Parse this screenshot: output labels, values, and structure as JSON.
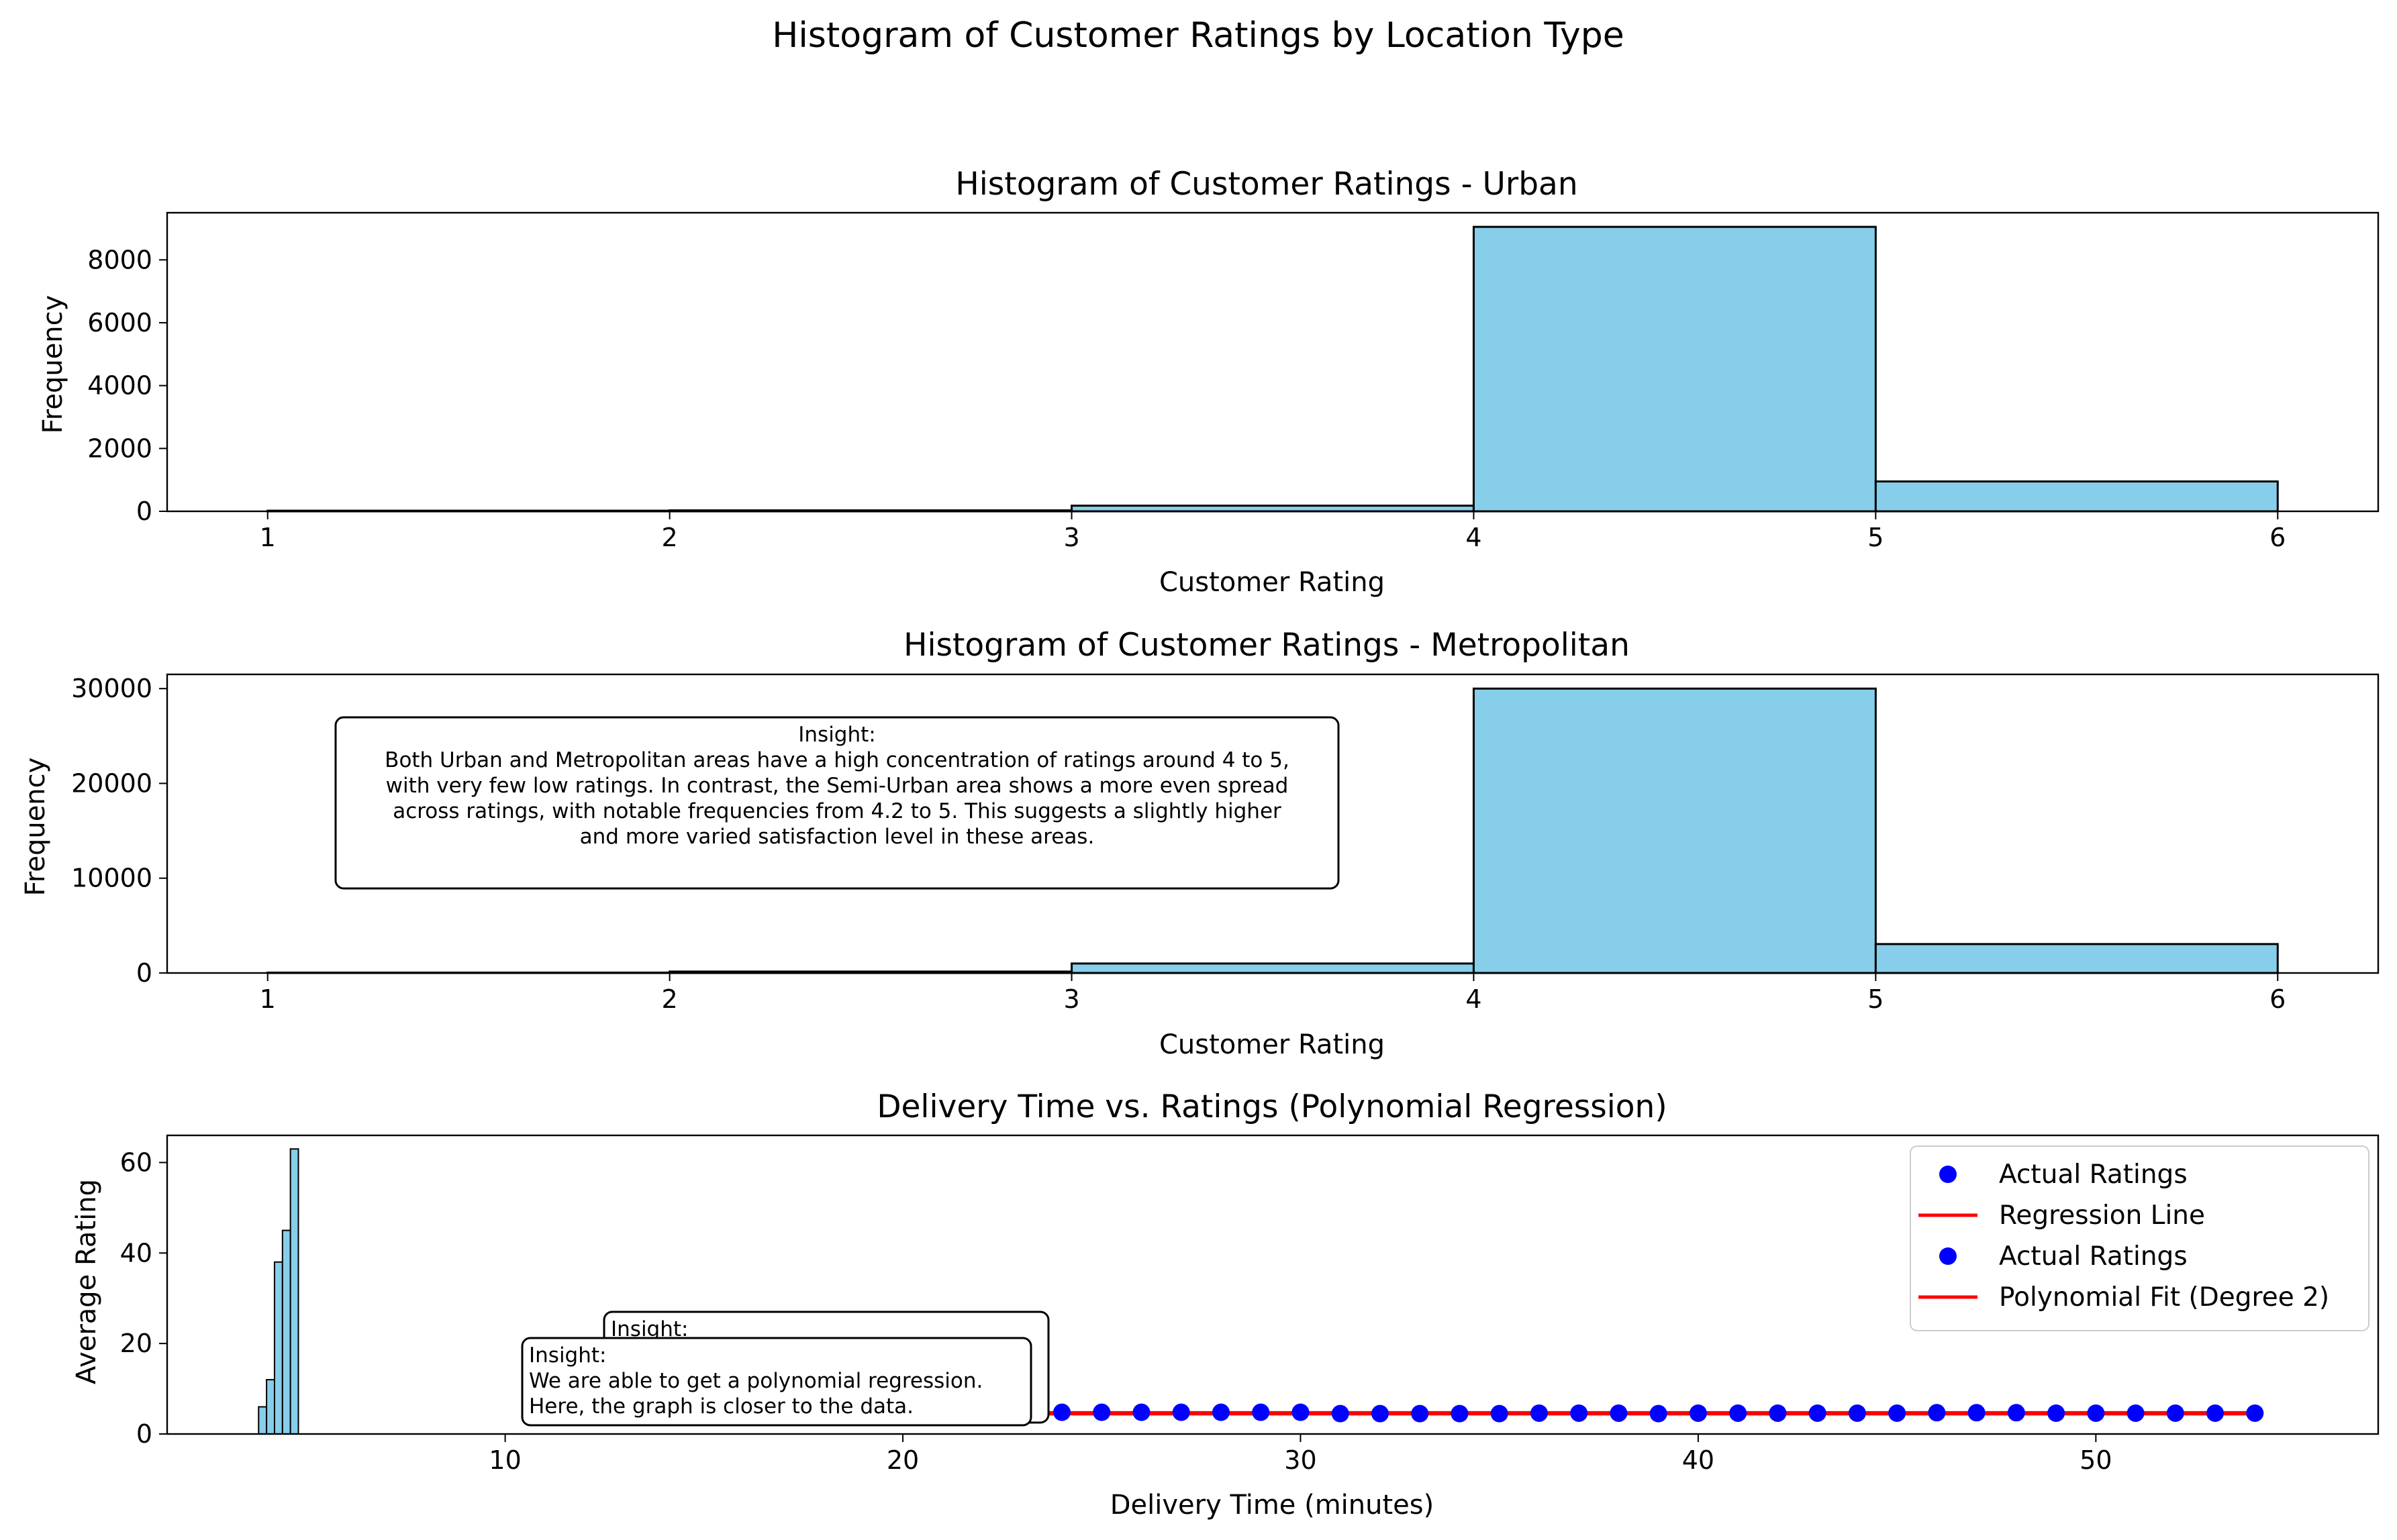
{
  "figure": {
    "title": "Histogram of Customer Ratings by Location Type"
  },
  "chart_data": [
    {
      "type": "bar",
      "title": "Histogram of Customer Ratings - Urban",
      "xlabel": "Customer Rating",
      "ylabel": "Frequency",
      "xlim": [
        0.75,
        6.25
      ],
      "ylim": [
        0,
        9500
      ],
      "xticks": [
        1,
        2,
        3,
        4,
        5,
        6
      ],
      "yticks": [
        0,
        2000,
        4000,
        6000,
        8000
      ],
      "bin_edges": [
        1,
        2,
        3,
        4,
        5,
        6
      ],
      "values": [
        20,
        30,
        180,
        9050,
        950
      ],
      "color": "#87ceeb",
      "edgecolor": "#000000"
    },
    {
      "type": "bar",
      "title": "Histogram of Customer Ratings - Metropolitan",
      "xlabel": "Customer Rating",
      "ylabel": "Frequency",
      "xlim": [
        0.75,
        6.25
      ],
      "ylim": [
        0,
        31500
      ],
      "xticks": [
        1,
        2,
        3,
        4,
        5,
        6
      ],
      "yticks": [
        0,
        10000,
        20000,
        30000
      ],
      "bin_edges": [
        1,
        2,
        3,
        4,
        5,
        6
      ],
      "values": [
        40,
        150,
        1000,
        30000,
        3050
      ],
      "color": "#87ceeb",
      "edgecolor": "#000000",
      "annotation": {
        "lines": [
          "Insight:",
          "Both Urban and Metropolitan areas have a high concentration of ratings around 4 to 5,",
          "with very few low ratings. In contrast, the Semi-Urban area shows a more even spread",
          "across ratings, with notable frequencies from 4.2 to 5. This suggests a slightly higher",
          "and more varied satisfaction level in these areas."
        ]
      }
    },
    {
      "type": "scatter",
      "title": "Delivery Time vs. Ratings (Polynomial Regression)",
      "xlabel": "Delivery Time (minutes)",
      "ylabel": "Average Rating",
      "xlim": [
        1.5,
        57.1
      ],
      "ylim": [
        0,
        66
      ],
      "xticks": [
        10,
        20,
        30,
        40,
        50
      ],
      "yticks": [
        0,
        20,
        40,
        60
      ],
      "histogram": {
        "bin_edges": [
          3.8,
          4.0,
          4.2,
          4.4,
          4.6,
          4.8,
          5.0
        ],
        "values": [
          6,
          12,
          38,
          45,
          63,
          0
        ],
        "color": "#87ceeb"
      },
      "series": [
        {
          "name": "Actual Ratings",
          "kind": "scatter",
          "color": "#0000ff",
          "x": [
            20,
            21,
            22,
            23,
            24,
            25,
            26,
            27,
            28,
            29,
            30,
            31,
            32,
            33,
            34,
            35,
            36,
            37,
            38,
            39,
            40,
            41,
            42,
            43,
            44,
            45,
            46,
            47,
            48,
            49,
            50,
            51,
            52,
            53,
            54
          ],
          "y": [
            4.7,
            4.7,
            4.7,
            4.7,
            4.8,
            4.8,
            4.8,
            4.8,
            4.8,
            4.8,
            4.8,
            4.5,
            4.5,
            4.5,
            4.5,
            4.5,
            4.6,
            4.6,
            4.6,
            4.5,
            4.6,
            4.6,
            4.6,
            4.6,
            4.6,
            4.6,
            4.7,
            4.7,
            4.7,
            4.6,
            4.6,
            4.6,
            4.6,
            4.6,
            4.6
          ]
        },
        {
          "name": "Regression Line",
          "kind": "line",
          "color": "#ff0000",
          "x": [
            20,
            54
          ],
          "y": [
            4.62,
            4.62
          ]
        },
        {
          "name": "Actual Ratings",
          "kind": "scatter",
          "color": "#0000ff",
          "x": [],
          "y": []
        },
        {
          "name": "Polynomial Fit (Degree 2)",
          "kind": "line",
          "color": "#ff0000",
          "x": [
            20,
            54
          ],
          "y": [
            4.55,
            4.55
          ]
        }
      ],
      "legend": {
        "placement": "upper right",
        "entries": [
          {
            "label": "Actual Ratings",
            "kind": "marker",
            "color": "#0000ff"
          },
          {
            "label": "Regression Line",
            "kind": "line",
            "color": "#ff0000"
          },
          {
            "label": "Actual Ratings",
            "kind": "marker",
            "color": "#0000ff"
          },
          {
            "label": "Polynomial Fit (Degree 2)",
            "kind": "line",
            "color": "#ff0000"
          }
        ]
      },
      "annotations": [
        {
          "lines": [
            "Insight:"
          ],
          "role": "back-box"
        },
        {
          "lines": [
            "Insight:",
            "We are able to get a polynomial regression.",
            "Here, the graph is closer to the data."
          ],
          "role": "front-box"
        }
      ]
    }
  ]
}
